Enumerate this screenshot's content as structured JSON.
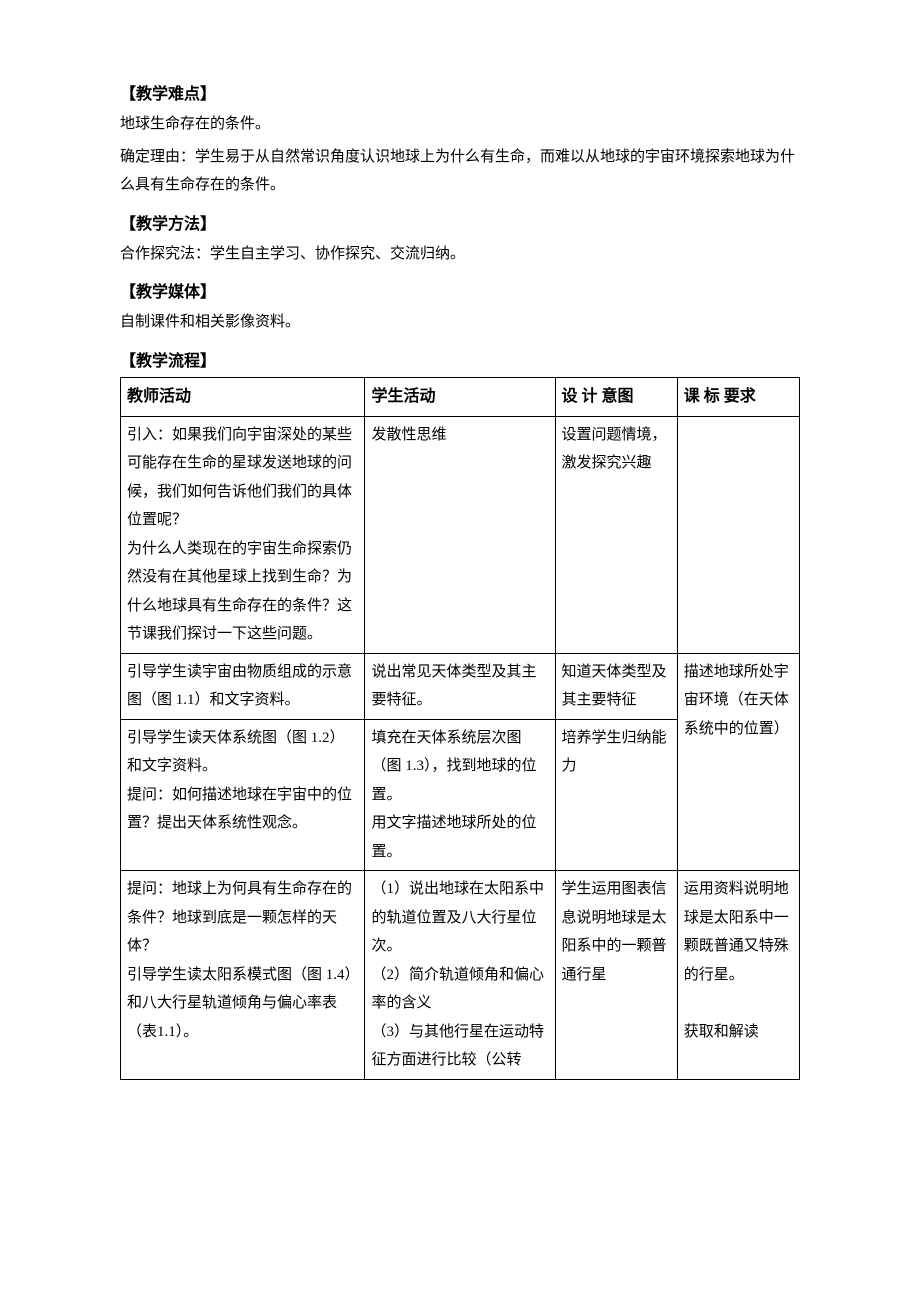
{
  "sections": {
    "difficulty": {
      "heading": "【教学难点】",
      "body1": "地球生命存在的条件。",
      "body2": "确定理由：学生易于从自然常识角度认识地球上为什么有生命，而难以从地球的宇宙环境探索地球为什么具有生命存在的条件。"
    },
    "method": {
      "heading": "【教学方法】",
      "body": "合作探究法：学生自主学习、协作探究、交流归纳。"
    },
    "media": {
      "heading": "【教学媒体】",
      "body": "自制课件和相关影像资料。"
    },
    "process": {
      "heading": "【教学流程】"
    }
  },
  "table": {
    "headers": {
      "teacher": "教师活动",
      "student": "学生活动",
      "intent": "设 计 意图",
      "standard": "课 标 要求"
    },
    "rows": [
      {
        "teacher": "引入：如果我们向宇宙深处的某些可能存在生命的星球发送地球的问候，我们如何告诉他们我们的具体位置呢？\n为什么人类现在的宇宙生命探索仍然没有在其他星球上找到生命？为什么地球具有生命存在的条件？这节课我们探讨一下这些问题。",
        "student": "发散性思维",
        "intent": "设置问题情境，激发探究兴趣",
        "standard": ""
      },
      {
        "teacher": "引导学生读宇宙由物质组成的示意图（图 1.1）和文字资料。",
        "student": "说出常见天体类型及其主要特征。",
        "intent": "知道天体类型及其主要特征",
        "standard": "描述地球所处宇宙环境（在天体系统中的位置）",
        "standard_rowspan": 2
      },
      {
        "teacher": "引导学生读天体系统图（图 1.2）和文字资料。\n提问：如何描述地球在宇宙中的位置？提出天体系统性观念。",
        "student": "填充在天体系统层次图（图 1.3），找到地球的位置。\n用文字描述地球所处的位置。",
        "intent": "培养学生归纳能力"
      },
      {
        "teacher": "提问：地球上为何具有生命存在的条件？地球到底是一颗怎样的天体？\n引导学生读太阳系模式图（图 1.4）和八大行星轨道倾角与偏心率表（表1.1）。",
        "student": "（1）说出地球在太阳系中的轨道位置及八大行星位次。\n（2）简介轨道倾角和偏心率的含义\n（3）与其他行星在运动特征方面进行比较（公转",
        "intent": "学生运用图表信息说明地球是太阳系中的一颗普通行星",
        "standard": "运用资料说明地球是太阳系中一颗既普通又特殊的行星。\n\n获取和解读"
      }
    ]
  }
}
